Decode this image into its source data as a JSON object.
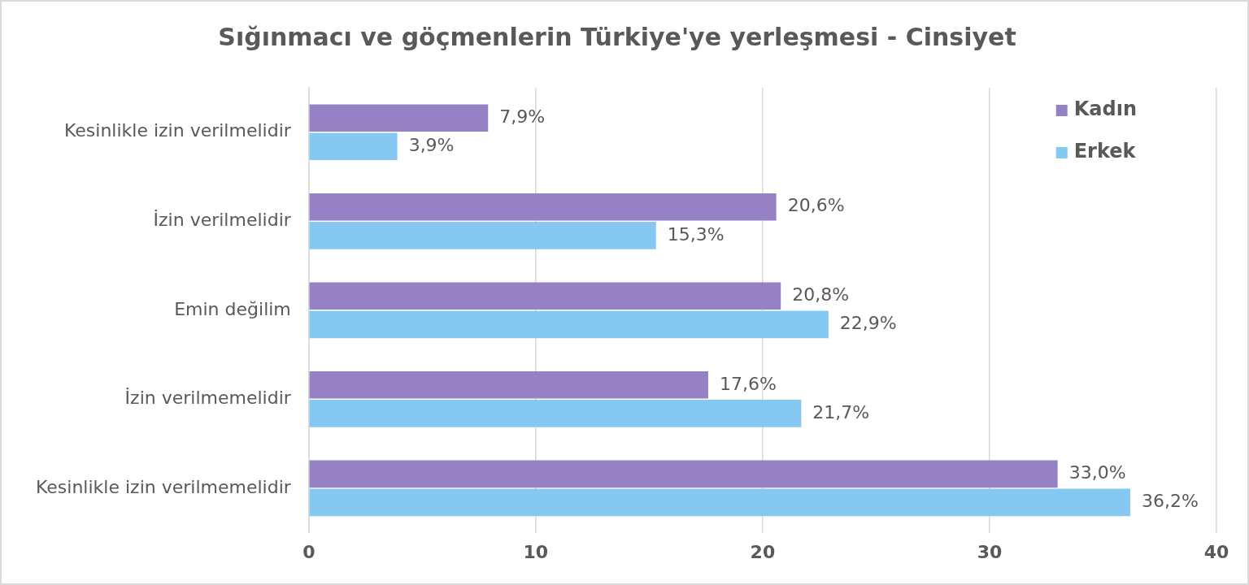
{
  "chart_data": {
    "type": "bar",
    "orientation": "horizontal",
    "title": "Sığınmacı ve göçmenlerin Türkiye'ye yerleşmesi - Cinsiyet",
    "categories": [
      "Kesinlikle izin verilmelidir",
      "İzin verilmelidir",
      "Emin değilim",
      "İzin verilmemelidir",
      "Kesinlikle izin verilmemelidir"
    ],
    "series": [
      {
        "name": "Kadın",
        "color": "#9681c4",
        "values": [
          7.9,
          20.6,
          20.8,
          17.6,
          33.0
        ],
        "value_labels": [
          "7,9%",
          "20,6%",
          "20,8%",
          "17,6%",
          "33,0%"
        ]
      },
      {
        "name": "Erkek",
        "color": "#85c8f2",
        "values": [
          3.9,
          15.3,
          22.9,
          21.7,
          36.2
        ],
        "value_labels": [
          "3,9%",
          "15,3%",
          "22,9%",
          "21,7%",
          "36,2%"
        ]
      }
    ],
    "xlim": [
      0,
      40
    ],
    "xticks": [
      0,
      10,
      20,
      30,
      40
    ],
    "grid": "x",
    "legend": "top right"
  }
}
